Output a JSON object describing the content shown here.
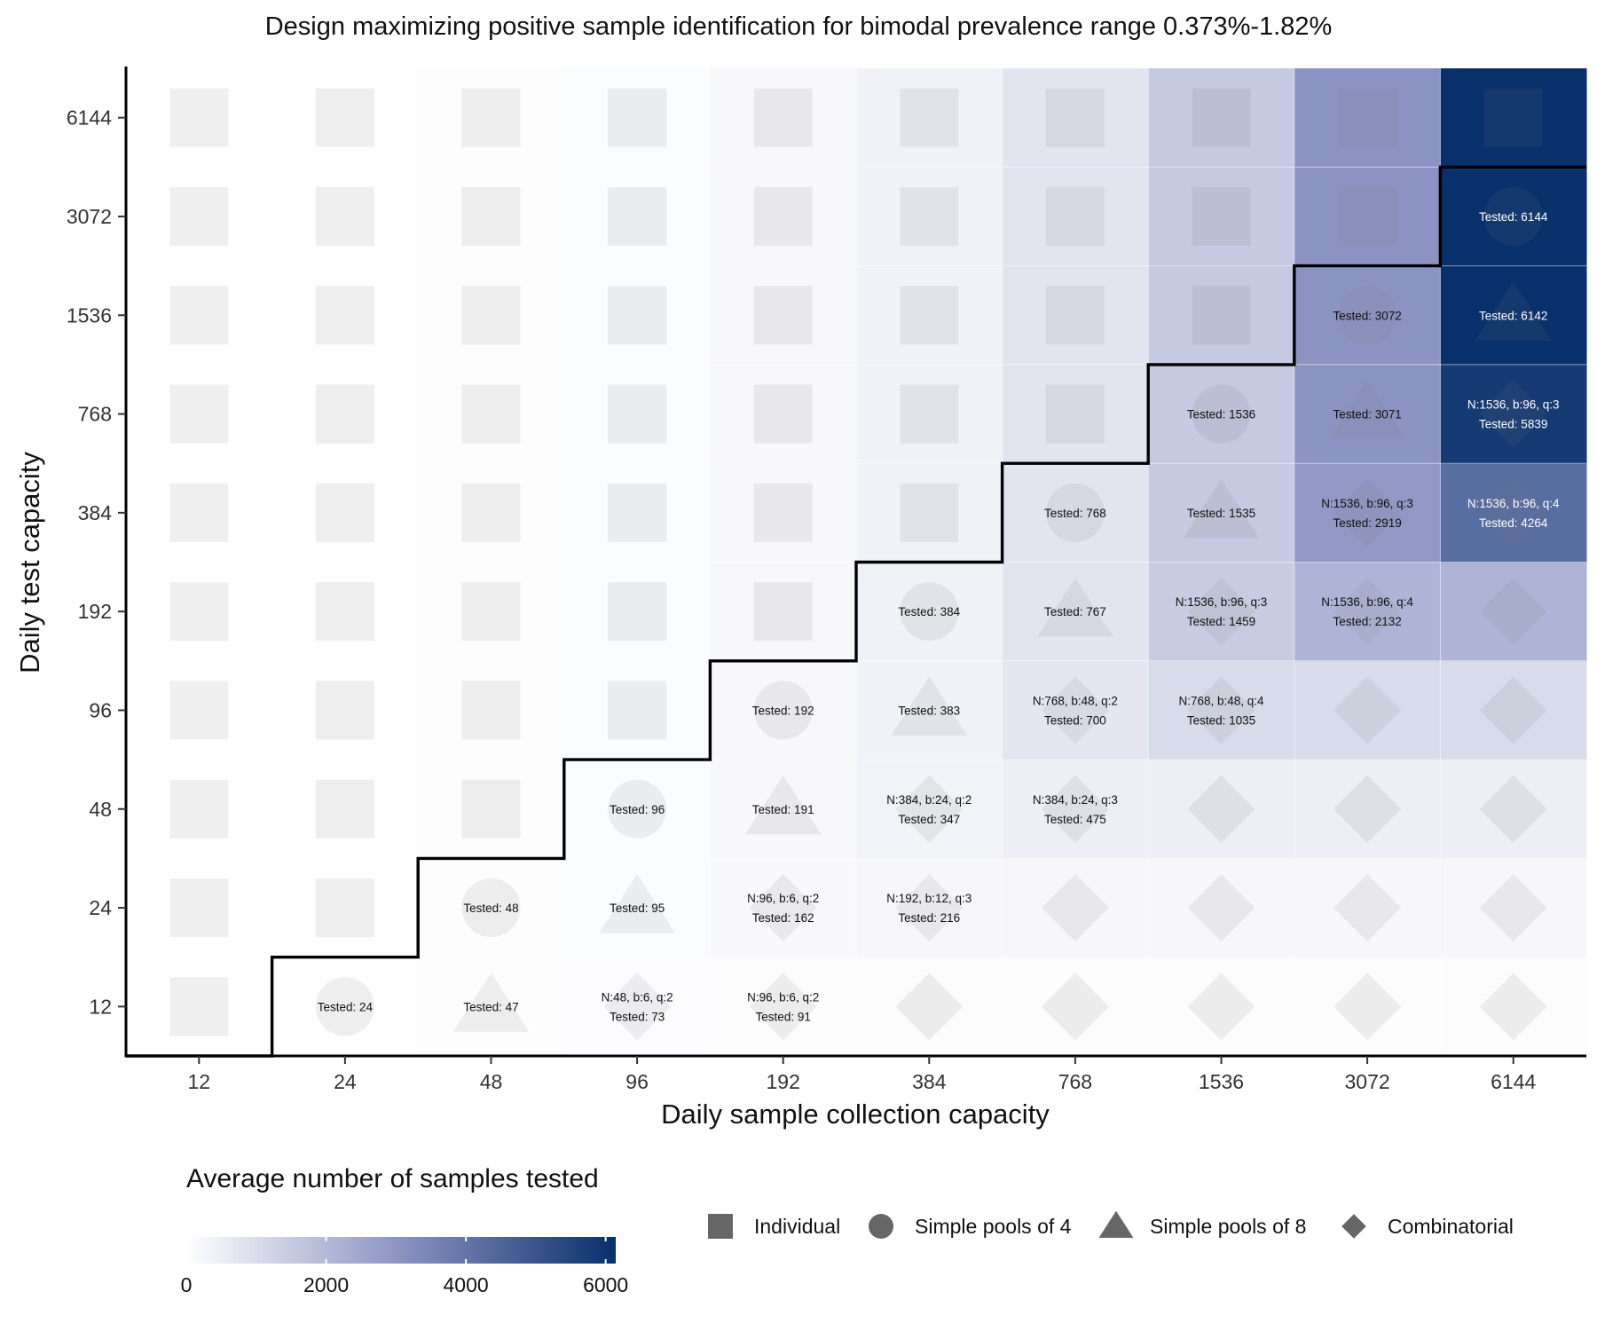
{
  "chart_data": {
    "type": "heatmap",
    "title": "Design maximizing positive sample identification for bimodal prevalence range 0.373%-1.82%",
    "xlabel": "Daily sample collection capacity",
    "ylabel": "Daily test capacity",
    "x": [
      "12",
      "24",
      "48",
      "96",
      "192",
      "384",
      "768",
      "1536",
      "3072",
      "6144"
    ],
    "y": [
      "6144",
      "3072",
      "1536",
      "768",
      "384",
      "192",
      "96",
      "48",
      "24",
      "12"
    ],
    "color_scale": {
      "title": "Average number of samples tested",
      "min": 0,
      "max": 6144,
      "ticks": [
        "0",
        "2000",
        "4000",
        "6000"
      ],
      "low_color": "#ffffff",
      "high_color": "#08306b"
    },
    "legend": {
      "placement": "bottom",
      "shapes": [
        {
          "shape": "square",
          "label": "Individual"
        },
        {
          "shape": "circle",
          "label": "Simple pools of 4"
        },
        {
          "shape": "triangle",
          "label": "Simple pools of 8"
        },
        {
          "shape": "diamond",
          "label": "Combinatorial"
        }
      ]
    },
    "cells": [
      {
        "x": "12",
        "y": "12",
        "tested": 12,
        "shape": "square",
        "label": ""
      },
      {
        "x": "24",
        "y": "12",
        "tested": 24,
        "shape": "circle",
        "label": "Tested: 24"
      },
      {
        "x": "48",
        "y": "12",
        "tested": 47,
        "shape": "triangle",
        "label": "Tested: 47"
      },
      {
        "x": "96",
        "y": "12",
        "tested": 73,
        "shape": "diamond",
        "label": "N:48, b:6, q:2\nTested: 73"
      },
      {
        "x": "192",
        "y": "12",
        "tested": 91,
        "shape": "diamond",
        "label": "N:96, b:6, q:2\nTested: 91"
      },
      {
        "x": "384",
        "y": "12",
        "tested": 91,
        "shape": "diamond",
        "label": ""
      },
      {
        "x": "768",
        "y": "12",
        "tested": 91,
        "shape": "diamond",
        "label": ""
      },
      {
        "x": "1536",
        "y": "12",
        "tested": 91,
        "shape": "diamond",
        "label": ""
      },
      {
        "x": "3072",
        "y": "12",
        "tested": 91,
        "shape": "diamond",
        "label": ""
      },
      {
        "x": "6144",
        "y": "12",
        "tested": 91,
        "shape": "diamond",
        "label": ""
      },
      {
        "x": "12",
        "y": "24",
        "tested": 12,
        "shape": "square",
        "label": ""
      },
      {
        "x": "24",
        "y": "24",
        "tested": 24,
        "shape": "square",
        "label": ""
      },
      {
        "x": "48",
        "y": "24",
        "tested": 48,
        "shape": "circle",
        "label": "Tested: 48"
      },
      {
        "x": "96",
        "y": "24",
        "tested": 95,
        "shape": "triangle",
        "label": "Tested: 95"
      },
      {
        "x": "192",
        "y": "24",
        "tested": 162,
        "shape": "diamond",
        "label": "N:96, b:6, q:2\nTested: 162"
      },
      {
        "x": "384",
        "y": "24",
        "tested": 216,
        "shape": "diamond",
        "label": "N:192, b:12, q:3\nTested: 216"
      },
      {
        "x": "768",
        "y": "24",
        "tested": 216,
        "shape": "diamond",
        "label": ""
      },
      {
        "x": "1536",
        "y": "24",
        "tested": 216,
        "shape": "diamond",
        "label": ""
      },
      {
        "x": "3072",
        "y": "24",
        "tested": 216,
        "shape": "diamond",
        "label": ""
      },
      {
        "x": "6144",
        "y": "24",
        "tested": 216,
        "shape": "diamond",
        "label": ""
      },
      {
        "x": "12",
        "y": "48",
        "tested": 12,
        "shape": "square",
        "label": ""
      },
      {
        "x": "24",
        "y": "48",
        "tested": 24,
        "shape": "square",
        "label": ""
      },
      {
        "x": "48",
        "y": "48",
        "tested": 48,
        "shape": "square",
        "label": ""
      },
      {
        "x": "96",
        "y": "48",
        "tested": 96,
        "shape": "circle",
        "label": "Tested: 96"
      },
      {
        "x": "192",
        "y": "48",
        "tested": 191,
        "shape": "triangle",
        "label": "Tested: 191"
      },
      {
        "x": "384",
        "y": "48",
        "tested": 347,
        "shape": "diamond",
        "label": "N:384, b:24, q:2\nTested: 347"
      },
      {
        "x": "768",
        "y": "48",
        "tested": 475,
        "shape": "diamond",
        "label": "N:384, b:24, q:3\nTested: 475"
      },
      {
        "x": "1536",
        "y": "48",
        "tested": 475,
        "shape": "diamond",
        "label": ""
      },
      {
        "x": "3072",
        "y": "48",
        "tested": 475,
        "shape": "diamond",
        "label": ""
      },
      {
        "x": "6144",
        "y": "48",
        "tested": 475,
        "shape": "diamond",
        "label": ""
      },
      {
        "x": "12",
        "y": "96",
        "tested": 12,
        "shape": "square",
        "label": ""
      },
      {
        "x": "24",
        "y": "96",
        "tested": 24,
        "shape": "square",
        "label": ""
      },
      {
        "x": "48",
        "y": "96",
        "tested": 48,
        "shape": "square",
        "label": ""
      },
      {
        "x": "96",
        "y": "96",
        "tested": 96,
        "shape": "square",
        "label": ""
      },
      {
        "x": "192",
        "y": "96",
        "tested": 192,
        "shape": "circle",
        "label": "Tested: 192"
      },
      {
        "x": "384",
        "y": "96",
        "tested": 383,
        "shape": "triangle",
        "label": "Tested: 383"
      },
      {
        "x": "768",
        "y": "96",
        "tested": 700,
        "shape": "diamond",
        "label": "N:768, b:48, q:2\nTested: 700"
      },
      {
        "x": "1536",
        "y": "96",
        "tested": 1035,
        "shape": "diamond",
        "label": "N:768, b:48, q:4\nTested: 1035"
      },
      {
        "x": "3072",
        "y": "96",
        "tested": 1035,
        "shape": "diamond",
        "label": ""
      },
      {
        "x": "6144",
        "y": "96",
        "tested": 1035,
        "shape": "diamond",
        "label": ""
      },
      {
        "x": "12",
        "y": "192",
        "tested": 12,
        "shape": "square",
        "label": ""
      },
      {
        "x": "24",
        "y": "192",
        "tested": 24,
        "shape": "square",
        "label": ""
      },
      {
        "x": "48",
        "y": "192",
        "tested": 48,
        "shape": "square",
        "label": ""
      },
      {
        "x": "96",
        "y": "192",
        "tested": 96,
        "shape": "square",
        "label": ""
      },
      {
        "x": "192",
        "y": "192",
        "tested": 192,
        "shape": "square",
        "label": ""
      },
      {
        "x": "384",
        "y": "192",
        "tested": 384,
        "shape": "circle",
        "label": "Tested: 384"
      },
      {
        "x": "768",
        "y": "192",
        "tested": 767,
        "shape": "triangle",
        "label": "Tested: 767"
      },
      {
        "x": "1536",
        "y": "192",
        "tested": 1459,
        "shape": "diamond",
        "label": "N:1536, b:96, q:3\nTested: 1459"
      },
      {
        "x": "3072",
        "y": "192",
        "tested": 2132,
        "shape": "diamond",
        "label": "N:1536, b:96, q:4\nTested: 2132"
      },
      {
        "x": "6144",
        "y": "192",
        "tested": 2132,
        "shape": "diamond",
        "label": ""
      },
      {
        "x": "12",
        "y": "384",
        "tested": 12,
        "shape": "square",
        "label": ""
      },
      {
        "x": "24",
        "y": "384",
        "tested": 24,
        "shape": "square",
        "label": ""
      },
      {
        "x": "48",
        "y": "384",
        "tested": 48,
        "shape": "square",
        "label": ""
      },
      {
        "x": "96",
        "y": "384",
        "tested": 96,
        "shape": "square",
        "label": ""
      },
      {
        "x": "192",
        "y": "384",
        "tested": 192,
        "shape": "square",
        "label": ""
      },
      {
        "x": "384",
        "y": "384",
        "tested": 384,
        "shape": "square",
        "label": ""
      },
      {
        "x": "768",
        "y": "384",
        "tested": 768,
        "shape": "circle",
        "label": "Tested: 768"
      },
      {
        "x": "1536",
        "y": "384",
        "tested": 1535,
        "shape": "triangle",
        "label": "Tested: 1535"
      },
      {
        "x": "3072",
        "y": "384",
        "tested": 2919,
        "shape": "diamond",
        "label": "N:1536, b:96, q:3\nTested: 2919"
      },
      {
        "x": "6144",
        "y": "384",
        "tested": 4264,
        "shape": "diamond",
        "label": "N:1536, b:96, q:4\nTested: 4264"
      },
      {
        "x": "12",
        "y": "768",
        "tested": 12,
        "shape": "square",
        "label": ""
      },
      {
        "x": "24",
        "y": "768",
        "tested": 24,
        "shape": "square",
        "label": ""
      },
      {
        "x": "48",
        "y": "768",
        "tested": 48,
        "shape": "square",
        "label": ""
      },
      {
        "x": "96",
        "y": "768",
        "tested": 96,
        "shape": "square",
        "label": ""
      },
      {
        "x": "192",
        "y": "768",
        "tested": 192,
        "shape": "square",
        "label": ""
      },
      {
        "x": "384",
        "y": "768",
        "tested": 384,
        "shape": "square",
        "label": ""
      },
      {
        "x": "768",
        "y": "768",
        "tested": 768,
        "shape": "square",
        "label": ""
      },
      {
        "x": "1536",
        "y": "768",
        "tested": 1536,
        "shape": "circle",
        "label": "Tested: 1536"
      },
      {
        "x": "3072",
        "y": "768",
        "tested": 3071,
        "shape": "triangle",
        "label": "Tested: 3071"
      },
      {
        "x": "6144",
        "y": "768",
        "tested": 5839,
        "shape": "diamond",
        "label": "N:1536, b:96, q:3\nTested: 5839"
      },
      {
        "x": "12",
        "y": "1536",
        "tested": 12,
        "shape": "square",
        "label": ""
      },
      {
        "x": "24",
        "y": "1536",
        "tested": 24,
        "shape": "square",
        "label": ""
      },
      {
        "x": "48",
        "y": "1536",
        "tested": 48,
        "shape": "square",
        "label": ""
      },
      {
        "x": "96",
        "y": "1536",
        "tested": 96,
        "shape": "square",
        "label": ""
      },
      {
        "x": "192",
        "y": "1536",
        "tested": 192,
        "shape": "square",
        "label": ""
      },
      {
        "x": "384",
        "y": "1536",
        "tested": 384,
        "shape": "square",
        "label": ""
      },
      {
        "x": "768",
        "y": "1536",
        "tested": 768,
        "shape": "square",
        "label": ""
      },
      {
        "x": "1536",
        "y": "1536",
        "tested": 1536,
        "shape": "square",
        "label": ""
      },
      {
        "x": "3072",
        "y": "1536",
        "tested": 3072,
        "shape": "circle",
        "label": "Tested: 3072"
      },
      {
        "x": "6144",
        "y": "1536",
        "tested": 6142,
        "shape": "triangle",
        "label": "Tested: 6142"
      },
      {
        "x": "12",
        "y": "3072",
        "tested": 12,
        "shape": "square",
        "label": ""
      },
      {
        "x": "24",
        "y": "3072",
        "tested": 24,
        "shape": "square",
        "label": ""
      },
      {
        "x": "48",
        "y": "3072",
        "tested": 48,
        "shape": "square",
        "label": ""
      },
      {
        "x": "96",
        "y": "3072",
        "tested": 96,
        "shape": "square",
        "label": ""
      },
      {
        "x": "192",
        "y": "3072",
        "tested": 192,
        "shape": "square",
        "label": ""
      },
      {
        "x": "384",
        "y": "3072",
        "tested": 384,
        "shape": "square",
        "label": ""
      },
      {
        "x": "768",
        "y": "3072",
        "tested": 768,
        "shape": "square",
        "label": ""
      },
      {
        "x": "1536",
        "y": "3072",
        "tested": 1536,
        "shape": "square",
        "label": ""
      },
      {
        "x": "3072",
        "y": "3072",
        "tested": 3072,
        "shape": "square",
        "label": ""
      },
      {
        "x": "6144",
        "y": "3072",
        "tested": 6144,
        "shape": "circle",
        "label": "Tested: 6144"
      },
      {
        "x": "12",
        "y": "6144",
        "tested": 12,
        "shape": "square",
        "label": ""
      },
      {
        "x": "24",
        "y": "6144",
        "tested": 24,
        "shape": "square",
        "label": ""
      },
      {
        "x": "48",
        "y": "6144",
        "tested": 48,
        "shape": "square",
        "label": ""
      },
      {
        "x": "96",
        "y": "6144",
        "tested": 96,
        "shape": "square",
        "label": ""
      },
      {
        "x": "192",
        "y": "6144",
        "tested": 192,
        "shape": "square",
        "label": ""
      },
      {
        "x": "384",
        "y": "6144",
        "tested": 384,
        "shape": "square",
        "label": ""
      },
      {
        "x": "768",
        "y": "6144",
        "tested": 768,
        "shape": "square",
        "label": ""
      },
      {
        "x": "1536",
        "y": "6144",
        "tested": 1536,
        "shape": "square",
        "label": ""
      },
      {
        "x": "3072",
        "y": "6144",
        "tested": 3072,
        "shape": "square",
        "label": ""
      },
      {
        "x": "6144",
        "y": "6144",
        "tested": 6144,
        "shape": "square",
        "label": ""
      }
    ]
  }
}
